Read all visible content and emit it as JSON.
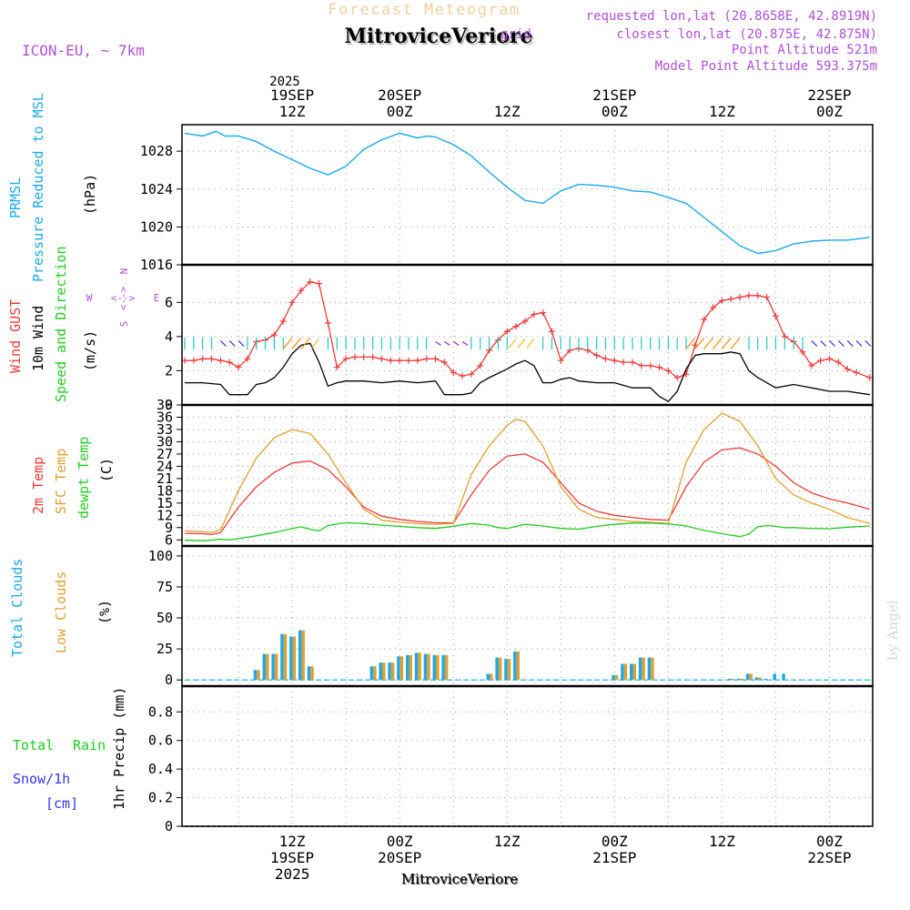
{
  "header": {
    "subtitle": "Forecast Meteogram",
    "title": "MitroviceVeriore",
    "model": "ICON-EU, ~ 7km",
    "requested": "requested lon,lat (20.8658E, 42.8919N)",
    "closest": "closest lon,lat (20.875E, 42.875N)",
    "point_alt": "Point Altitude 521m",
    "model_alt": "Model Point Altitude 593.375m",
    "overlap_word": "grid"
  },
  "time_axis": {
    "year": "2025",
    "top_day_labels": [
      {
        "t": 12,
        "line1": "19SEP",
        "line2": "12Z"
      },
      {
        "t": 24,
        "line1": "20SEP",
        "line2": "00Z"
      },
      {
        "t": 36,
        "line1": "",
        "line2": "12Z"
      },
      {
        "t": 48,
        "line1": "21SEP",
        "line2": "00Z"
      },
      {
        "t": 60,
        "line1": "",
        "line2": "12Z"
      },
      {
        "t": 72,
        "line1": "22SEP",
        "line2": "00Z"
      }
    ],
    "bottom_labels": [
      {
        "t": 12,
        "hour": "12Z",
        "day": "19SEP",
        "year": "2025"
      },
      {
        "t": 24,
        "hour": "00Z",
        "day": "20SEP",
        "year": ""
      },
      {
        "t": 36,
        "hour": "12Z",
        "day": "",
        "year": ""
      },
      {
        "t": 48,
        "hour": "00Z",
        "day": "21SEP",
        "year": ""
      },
      {
        "t": 60,
        "hour": "12Z",
        "day": "",
        "year": ""
      },
      {
        "t": 72,
        "hour": "00Z",
        "day": "22SEP",
        "year": ""
      }
    ],
    "t_range": [
      0,
      76.5
    ],
    "footer_name": "MitroviceVeriore"
  },
  "colors": {
    "pressure": "#1ca9e8",
    "gust": "#ee3b3b",
    "wind": "#000000",
    "temp2m": "#ee3b3b",
    "sfc": "#e0a030",
    "dew": "#22cc22",
    "total_clouds": "#1ca9e8",
    "low_clouds": "#e0a030",
    "rain": "#22cc22",
    "snow": "#3333ee",
    "model_text": "#b04fd6"
  },
  "panel_labels": {
    "pressure": [
      "PRMSL",
      "Pressure Reduced to MSL",
      "(hPa)"
    ],
    "wind": [
      "Wind GUST",
      "10m Wind",
      "Speed and Direction",
      "(m/s)"
    ],
    "compass": {
      "n": "N",
      "s": "S",
      "w": "W",
      "e": "E"
    },
    "temp": [
      "2m Temp",
      "SFC Temp",
      "dewpt Temp",
      "(C)"
    ],
    "clouds": [
      "Total Clouds",
      "Low Clouds",
      "(%)"
    ],
    "precip": [
      "Total",
      "Rain",
      "Snow/1h",
      "[cm]",
      "1hr Precip (mm)"
    ],
    "credit": "by Angel"
  },
  "chart_data": [
    {
      "type": "line",
      "name": "pressure",
      "title": "PRMSL Pressure Reduced to MSL",
      "ylabel": "hPa",
      "ylim": [
        1016,
        1030.8
      ],
      "yticks": [
        1016,
        1020,
        1024,
        1028
      ],
      "series": [
        {
          "name": "PRMSL",
          "x": [
            0,
            2,
            3.5,
            4.5,
            6,
            8,
            10,
            12,
            14,
            16,
            18,
            20,
            22,
            24,
            26,
            27,
            28,
            30,
            32,
            34,
            36,
            38,
            40,
            42,
            44,
            46,
            48,
            50,
            52,
            54,
            56,
            58,
            60,
            62,
            64,
            66,
            68,
            70,
            72,
            74,
            76.5
          ],
          "values": [
            1029.9,
            1029.6,
            1030.1,
            1029.6,
            1029.6,
            1029.0,
            1028.0,
            1027.1,
            1026.2,
            1025.5,
            1026.4,
            1028.2,
            1029.2,
            1029.9,
            1029.4,
            1029.6,
            1029.5,
            1028.7,
            1027.5,
            1025.8,
            1024.2,
            1022.8,
            1022.5,
            1023.8,
            1024.5,
            1024.4,
            1024.2,
            1023.8,
            1023.7,
            1023.1,
            1022.5,
            1021.0,
            1019.5,
            1018.0,
            1017.2,
            1017.5,
            1018.2,
            1018.5,
            1018.6,
            1018.6,
            1018.9
          ]
        }
      ]
    },
    {
      "type": "line",
      "name": "wind",
      "title": "Wind GUST / 10m Wind Speed and Direction",
      "ylabel": "m/s",
      "ylim": [
        0,
        8.2
      ],
      "yticks": [
        0,
        2,
        4,
        6
      ],
      "series": [
        {
          "name": "Wind GUST",
          "x": [
            0,
            1,
            2,
            3,
            4,
            5,
            6,
            7,
            8,
            9,
            10,
            11,
            12,
            13,
            14,
            15,
            16,
            17,
            18,
            19,
            20,
            21,
            22,
            23,
            24,
            25,
            26,
            27,
            28,
            29,
            30,
            31,
            32,
            33,
            34,
            35,
            36,
            37,
            38,
            39,
            40,
            41,
            42,
            43,
            44,
            45,
            46,
            47,
            48,
            49,
            50,
            51,
            52,
            53,
            54,
            55,
            56,
            57,
            58,
            59,
            60,
            61,
            62,
            63,
            64,
            65,
            66,
            67,
            68,
            69,
            70,
            71,
            72,
            73,
            74,
            75,
            76.5
          ],
          "values": [
            2.6,
            2.6,
            2.7,
            2.7,
            2.6,
            2.5,
            2.2,
            2.7,
            3.7,
            3.8,
            4.1,
            4.9,
            6.0,
            6.7,
            7.2,
            7.1,
            4.8,
            2.2,
            2.7,
            2.8,
            2.8,
            2.8,
            2.7,
            2.6,
            2.6,
            2.6,
            2.6,
            2.7,
            2.7,
            2.5,
            1.9,
            1.7,
            1.8,
            2.3,
            3.2,
            3.8,
            4.3,
            4.6,
            4.9,
            5.3,
            5.4,
            4.3,
            2.6,
            3.2,
            3.3,
            3.2,
            2.9,
            2.7,
            2.6,
            2.5,
            2.5,
            2.3,
            2.3,
            2.2,
            2.0,
            1.6,
            1.8,
            3.5,
            5.0,
            5.7,
            6.1,
            6.2,
            6.3,
            6.4,
            6.4,
            6.3,
            5.2,
            4.0,
            3.7,
            3.1,
            2.3,
            2.6,
            2.7,
            2.5,
            2.1,
            1.9,
            1.6
          ]
        },
        {
          "name": "10m Wind",
          "x": [
            0,
            2,
            4,
            5,
            6,
            7,
            8,
            9,
            10,
            11,
            12,
            13,
            14,
            15,
            16,
            17,
            18,
            19,
            20,
            22,
            24,
            26,
            28,
            29,
            30,
            31,
            32,
            33,
            34,
            36,
            37,
            38,
            39,
            40,
            41,
            42,
            43,
            44,
            46,
            48,
            50,
            52,
            53,
            54,
            55,
            56,
            57,
            58,
            59,
            60,
            61,
            62,
            63,
            64,
            65,
            66,
            68,
            70,
            72,
            74,
            76.5
          ],
          "values": [
            1.3,
            1.3,
            1.2,
            0.6,
            0.6,
            0.6,
            1.2,
            1.3,
            1.6,
            2.2,
            3.0,
            3.5,
            3.6,
            2.5,
            1.1,
            1.3,
            1.4,
            1.4,
            1.4,
            1.3,
            1.4,
            1.3,
            1.4,
            0.6,
            0.6,
            0.6,
            0.7,
            1.3,
            1.6,
            2.1,
            2.4,
            2.6,
            2.3,
            1.3,
            1.3,
            1.5,
            1.6,
            1.4,
            1.3,
            1.3,
            1.0,
            1.0,
            0.5,
            0.2,
            0.8,
            2.1,
            2.9,
            3.0,
            3.0,
            3.0,
            3.1,
            3.0,
            2.0,
            1.6,
            1.3,
            1.0,
            1.2,
            1.0,
            0.8,
            0.8,
            0.6
          ]
        }
      ]
    },
    {
      "type": "line",
      "name": "temperature",
      "title": "2m Temp / SFC Temp / dewpt Temp",
      "ylabel": "C",
      "ylim": [
        4.5,
        39
      ],
      "yticks": [
        6,
        9,
        12,
        15,
        18,
        21,
        24,
        27,
        30,
        33,
        36,
        39
      ],
      "series": [
        {
          "name": "2m Temp",
          "x": [
            0,
            2,
            3,
            4,
            6,
            8,
            10,
            12,
            14,
            16,
            18,
            20,
            22,
            24,
            26,
            28,
            30,
            32,
            34,
            36,
            38,
            40,
            42,
            44,
            46,
            48,
            50,
            52,
            54,
            56,
            58,
            60,
            62,
            64,
            66,
            68,
            70,
            72,
            74,
            76.5
          ],
          "values": [
            7.6,
            7.5,
            7.3,
            7.8,
            14.0,
            19.0,
            22.5,
            24.8,
            25.3,
            23.2,
            19.0,
            14.0,
            11.8,
            11.0,
            10.5,
            10.2,
            10.1,
            17.0,
            23.0,
            26.5,
            27.0,
            25.0,
            20.0,
            15.0,
            13.0,
            12.0,
            11.5,
            11.0,
            10.8,
            19.0,
            25.0,
            28.0,
            28.5,
            27.0,
            24.0,
            20.0,
            17.5,
            16.0,
            15.0,
            13.5
          ]
        },
        {
          "name": "SFC Temp",
          "x": [
            0,
            2,
            3,
            4,
            6,
            8,
            10,
            12,
            14,
            16,
            18,
            20,
            22,
            24,
            26,
            28,
            30,
            32,
            34,
            36,
            37,
            38,
            40,
            42,
            44,
            46,
            48,
            50,
            52,
            54,
            56,
            58,
            60,
            62,
            64,
            66,
            68,
            70,
            72,
            74,
            76.5
          ],
          "values": [
            8.2,
            8.0,
            7.8,
            8.5,
            18.0,
            26.0,
            31.0,
            33.0,
            32.0,
            27.0,
            20.0,
            13.5,
            10.8,
            10.3,
            10.0,
            9.8,
            10.0,
            22.0,
            29.0,
            34.0,
            35.5,
            35.0,
            29.0,
            19.0,
            13.5,
            11.5,
            11.0,
            10.5,
            10.3,
            10.0,
            25.0,
            33.0,
            37.0,
            35.0,
            29.0,
            21.0,
            17.0,
            15.0,
            13.5,
            11.5,
            10.0
          ]
        },
        {
          "name": "dewpt Temp",
          "x": [
            0,
            2,
            3,
            4,
            5,
            6,
            8,
            10,
            12,
            13,
            14,
            15,
            16,
            18,
            20,
            22,
            24,
            26,
            28,
            30,
            32,
            34,
            35,
            36,
            38,
            40,
            42,
            44,
            46,
            48,
            50,
            52,
            54,
            56,
            58,
            60,
            62,
            63,
            64,
            65,
            66,
            67,
            68,
            70,
            72,
            74,
            76.5
          ],
          "values": [
            5.9,
            5.8,
            5.9,
            6.2,
            6.0,
            6.3,
            7.0,
            7.8,
            8.8,
            9.2,
            8.6,
            8.2,
            9.5,
            10.2,
            10.0,
            9.6,
            9.3,
            9.0,
            8.8,
            9.3,
            10.0,
            9.6,
            9.0,
            8.8,
            9.8,
            9.4,
            8.8,
            8.6,
            9.3,
            9.8,
            10.1,
            10.1,
            9.9,
            9.4,
            8.3,
            7.5,
            6.8,
            7.4,
            9.2,
            9.5,
            9.3,
            9.0,
            9.0,
            8.8,
            8.7,
            9.1,
            9.4
          ]
        }
      ]
    },
    {
      "type": "bar",
      "name": "clouds",
      "title": "Total Clouds / Low Clouds",
      "ylabel": "%",
      "ylim": [
        -5,
        108
      ],
      "yticks": [
        0,
        25,
        50,
        75,
        100
      ],
      "x": [
        8,
        9,
        10,
        11,
        12,
        13,
        14,
        21,
        22,
        23,
        24,
        25,
        26,
        27,
        28,
        29,
        34,
        35,
        36,
        37,
        48,
        49,
        50,
        51,
        52,
        61,
        62,
        63,
        64,
        65,
        66,
        67
      ],
      "series": [
        {
          "name": "Total Clouds",
          "values": [
            8,
            21,
            21,
            37,
            35,
            40,
            11,
            11,
            14,
            14,
            19,
            20,
            22,
            21,
            20,
            20,
            5,
            18,
            17,
            23,
            4,
            13,
            13,
            18,
            18,
            1,
            1,
            5,
            2,
            1,
            5,
            5
          ]
        },
        {
          "name": "Low Clouds",
          "values": [
            8,
            21,
            21,
            37,
            35,
            40,
            11,
            11,
            14,
            14,
            19,
            20,
            22,
            21,
            20,
            20,
            5,
            18,
            17,
            23,
            4,
            13,
            13,
            18,
            18,
            1,
            1,
            5,
            2,
            0,
            0,
            0
          ]
        }
      ]
    },
    {
      "type": "line",
      "name": "precip",
      "title": "1hr Precip",
      "ylabel": "1hr Precip (mm)",
      "ylim": [
        0,
        0.98
      ],
      "yticks": [
        0,
        0.2,
        0.4,
        0.6,
        0.8
      ],
      "series": [
        {
          "name": "Total Rain",
          "x": [
            0,
            76.5
          ],
          "values": [
            0,
            0
          ]
        }
      ]
    }
  ]
}
